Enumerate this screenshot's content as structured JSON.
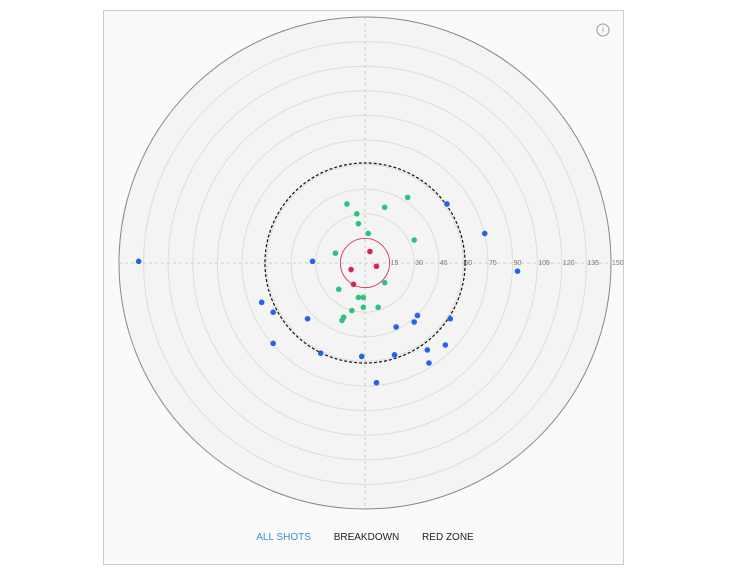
{
  "chart_data": {
    "type": "polar-scatter",
    "rlim": [
      0,
      150
    ],
    "rticks": [
      15,
      30,
      45,
      60,
      75,
      90,
      105,
      120,
      135,
      150
    ],
    "grid": true,
    "red_zone_radius": 15,
    "reference_radius": 61,
    "series": [
      {
        "color": "#d6264f",
        "x": [
          3,
          7,
          -8.5,
          -7
        ],
        "y": [
          7,
          -2,
          -4,
          -13
        ]
      },
      {
        "color": "#2ec27e",
        "x": [
          -11,
          -5,
          -4,
          12,
          26,
          2,
          30,
          -18,
          12,
          -16,
          -4,
          -1,
          -8,
          -1,
          8,
          -13,
          -14
        ],
        "y": [
          36,
          30,
          24,
          34,
          40,
          18,
          14,
          6,
          -12,
          -16,
          -21,
          -21,
          -29,
          -27,
          -27,
          -33,
          -35
        ]
      },
      {
        "color": "#2563eb",
        "x": [
          -138,
          -32,
          50,
          73,
          93,
          -63,
          -56,
          -35,
          -56,
          -27,
          -2,
          7,
          18,
          19,
          30,
          32,
          52,
          49,
          38,
          39
        ],
        "y": [
          1,
          1,
          36,
          18,
          -5,
          -24,
          -30,
          -34,
          -49,
          -55,
          -57,
          -73,
          -56,
          -39,
          -36,
          -32,
          -34,
          -50,
          -53,
          -61
        ]
      }
    ]
  },
  "info_icon": "i",
  "tabs": [
    "ALL SHOTS",
    "BREAKDOWN",
    "RED ZONE"
  ]
}
